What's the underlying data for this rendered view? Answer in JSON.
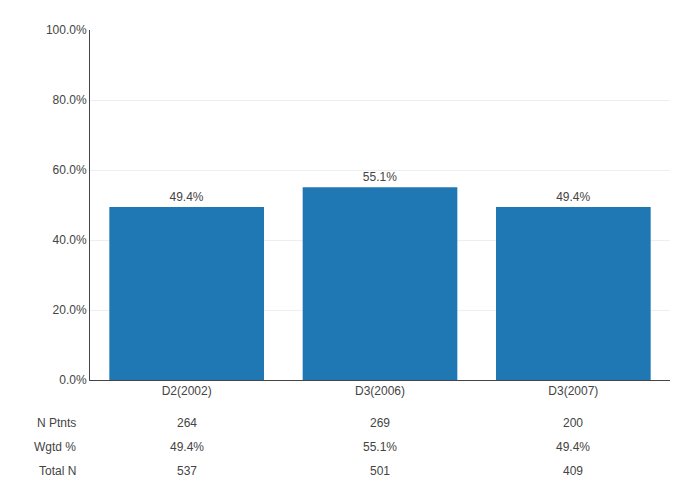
{
  "chart_data": {
    "type": "bar",
    "categories": [
      "D2(2002)",
      "D3(2006)",
      "D3(2007)"
    ],
    "values": [
      49.4,
      55.1,
      49.4
    ],
    "value_labels": [
      "49.4%",
      "55.1%",
      "49.4%"
    ],
    "data_labels": true,
    "ylim": [
      0,
      100
    ],
    "yticks": [
      {
        "value": 0,
        "label": "0.0%"
      },
      {
        "value": 20,
        "label": "20.0%"
      },
      {
        "value": 40,
        "label": "40.0%"
      },
      {
        "value": 60,
        "label": "60.0%"
      },
      {
        "value": 80,
        "label": "80.0%"
      },
      {
        "value": 100,
        "label": "100.0%"
      }
    ],
    "grid": true,
    "table": {
      "rows": [
        "N Ptnts",
        "Wgtd %",
        "Total N"
      ],
      "cells": [
        [
          "264",
          "269",
          "200"
        ],
        [
          "49.4%",
          "55.1%",
          "49.4%"
        ],
        [
          "537",
          "501",
          "409"
        ]
      ]
    }
  }
}
